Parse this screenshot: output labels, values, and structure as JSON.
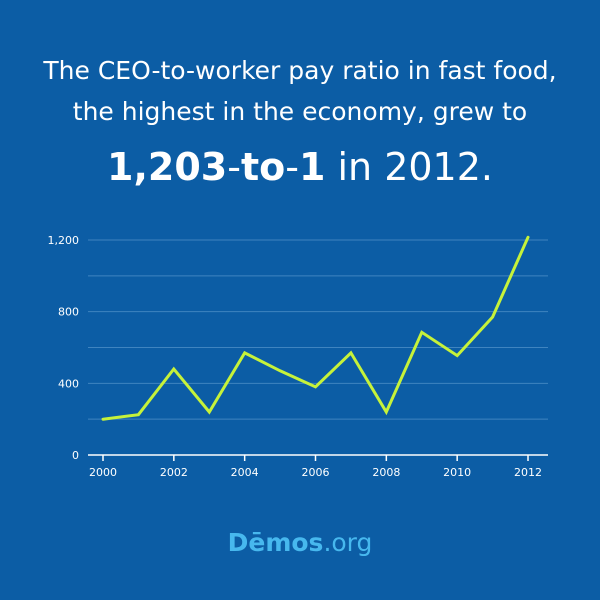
{
  "headline": {
    "line1": "The CEO-to-worker pay ratio in fast food,",
    "line2": "the highest in the economy, grew to",
    "ratio_left": "1,203",
    "ratio_mid_dash1": "-",
    "ratio_word": "to",
    "ratio_mid_dash2": "-",
    "ratio_right": "1",
    "ratio_suffix": " in 2012."
  },
  "logo": {
    "brand": "Dēmos",
    "tld": ".org"
  },
  "colors": {
    "background": "#0c5da5",
    "line": "#c6f23a",
    "grid": "#3f84c0",
    "axis": "#ffffff",
    "logo": "#47b8ee"
  },
  "chart_data": {
    "type": "line",
    "title": "",
    "xlabel": "",
    "ylabel": "",
    "x": [
      2000,
      2001,
      2002,
      2003,
      2004,
      2005,
      2006,
      2007,
      2008,
      2009,
      2010,
      2011,
      2012
    ],
    "series": [
      {
        "values": [
          200,
          225,
          480,
          240,
          570,
          470,
          380,
          570,
          240,
          685,
          555,
          770,
          1215
        ]
      }
    ],
    "xlim": [
      2000,
      2012
    ],
    "ylim": [
      0,
      1200
    ],
    "xticks": [
      "2000",
      "2002",
      "2004",
      "2006",
      "2008",
      "2010",
      "2012"
    ],
    "yticks": [
      "0",
      "400",
      "800",
      "1,200"
    ],
    "grid": true,
    "legend": "none"
  }
}
